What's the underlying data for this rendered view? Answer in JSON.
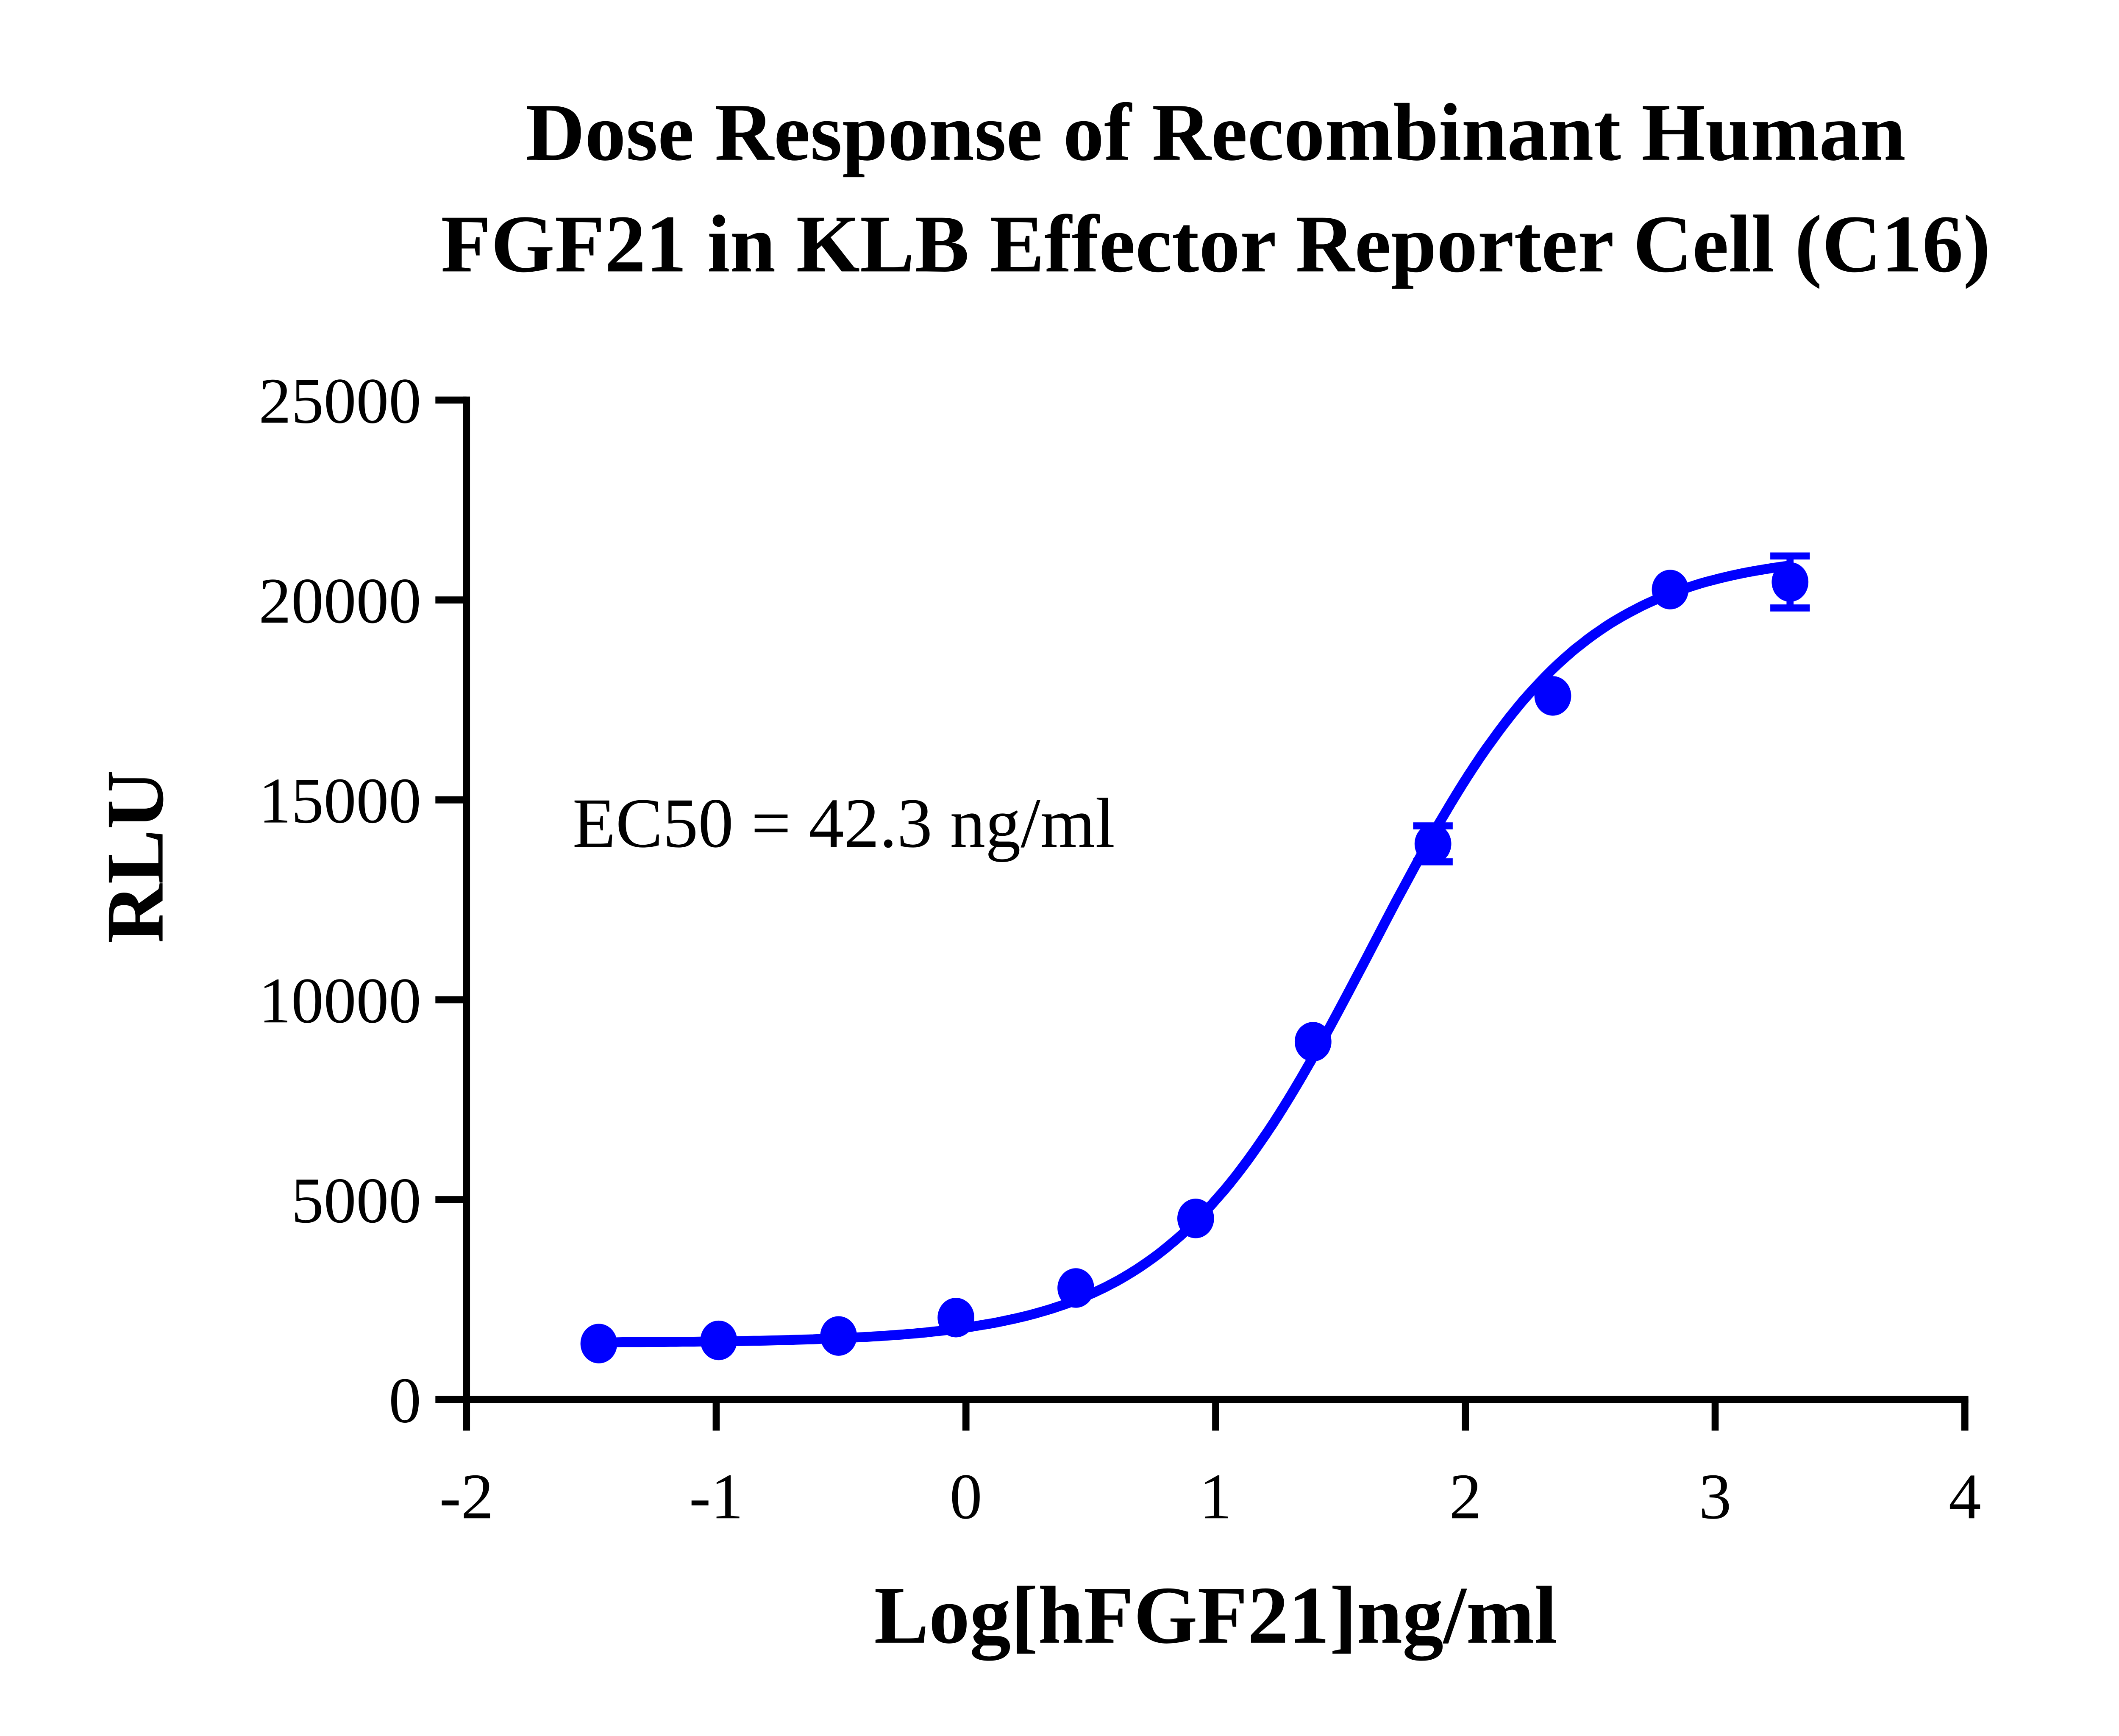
{
  "chart_data": {
    "type": "scatter",
    "title_lines": [
      "Dose Response of Recombinant Human",
      "FGF21 in KLB Effector Reporter Cell (C16)"
    ],
    "xlabel": "Log[hFGF21]ng/ml",
    "ylabel": "RLU",
    "xlim": [
      -2,
      4
    ],
    "ylim": [
      0,
      25000
    ],
    "xticks": [
      "-2",
      "-1",
      "0",
      "1",
      "2",
      "3",
      "4"
    ],
    "yticks": [
      "0",
      "5000",
      "10000",
      "15000",
      "20000",
      "25000"
    ],
    "grid": false,
    "color": "#0000ff",
    "annotation": "EC50 = 42.3 ng/ml",
    "points": [
      {
        "x": -1.47,
        "y": 1400,
        "err": 0
      },
      {
        "x": -0.99,
        "y": 1480,
        "err": 0
      },
      {
        "x": -0.51,
        "y": 1590,
        "err": 0
      },
      {
        "x": -0.04,
        "y": 2050,
        "err": 0
      },
      {
        "x": 0.44,
        "y": 2790,
        "err": 0
      },
      {
        "x": 0.92,
        "y": 4530,
        "err": 0
      },
      {
        "x": 1.39,
        "y": 8950,
        "err": 0
      },
      {
        "x": 1.87,
        "y": 13900,
        "err": 450
      },
      {
        "x": 2.35,
        "y": 17600,
        "err": 0
      },
      {
        "x": 2.82,
        "y": 20260,
        "err": 0
      },
      {
        "x": 3.3,
        "y": 20450,
        "err": 650
      }
    ],
    "fit": {
      "model": "4PL",
      "bottom": 1420,
      "top": 21200,
      "log_ec50": 1.626,
      "hill": 1.05
    }
  }
}
